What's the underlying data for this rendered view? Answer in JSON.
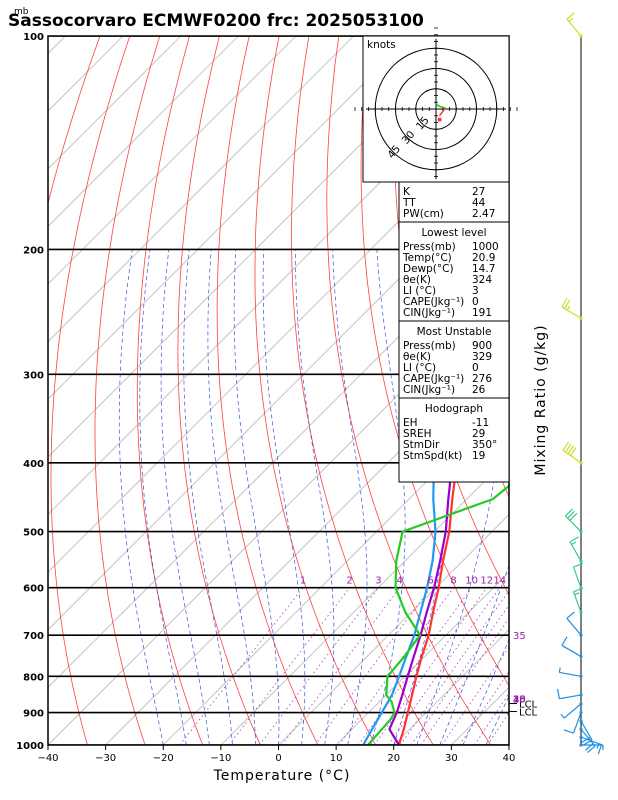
{
  "title": "Sassocorvaro ECMWF0200 frc: 2025053100",
  "pressure_unit": "mb",
  "xlabel": "Temperature (°C)",
  "right_label": "Mixing Ratio (g/kg)",
  "hodograph": {
    "unit": "knots",
    "ring_labels": [
      "15",
      "30",
      "45"
    ]
  },
  "lcl_label": "LCL",
  "mixing_ratio_labels": [
    "1",
    "2",
    "3",
    "4",
    "6",
    "8",
    "10",
    "12",
    "14",
    "16",
    "18",
    "20",
    "25",
    "30",
    "35",
    "40"
  ],
  "table": {
    "top": [
      {
        "label": "K",
        "value": "27"
      },
      {
        "label": "TT",
        "value": "44"
      },
      {
        "label": "PW(cm)",
        "value": "2.47"
      }
    ],
    "lowest_level": {
      "heading": "Lowest level",
      "rows": [
        {
          "label": "Press(mb)",
          "value": "1000"
        },
        {
          "label": "Temp(°C)",
          "value": "20.9"
        },
        {
          "label": "Dewp(°C)",
          "value": "14.7"
        },
        {
          "label": "θe(K)",
          "value": "324"
        },
        {
          "label": "LI (°C)",
          "value": "3"
        },
        {
          "label": "CAPE(Jkg⁻¹)",
          "value": "0"
        },
        {
          "label": "CIN(Jkg⁻¹)",
          "value": "191"
        }
      ]
    },
    "most_unstable": {
      "heading": "Most Unstable",
      "rows": [
        {
          "label": "Press(mb)",
          "value": "900"
        },
        {
          "label": "θe(K)",
          "value": "329"
        },
        {
          "label": "LI (°C)",
          "value": "0"
        },
        {
          "label": "CAPE(Jkg⁻¹)",
          "value": "276"
        },
        {
          "label": "CIN(Jkg⁻¹)",
          "value": "26"
        }
      ]
    },
    "hodograph": {
      "heading": "Hodograph",
      "rows": [
        {
          "label": "EH",
          "value": "-11"
        },
        {
          "label": "SREH",
          "value": "29"
        },
        {
          "label": "StmDir",
          "value": "350°"
        },
        {
          "label": "StmSpd(kt)",
          "value": "19"
        }
      ]
    }
  },
  "chart_data": {
    "type": "line",
    "title": "Sassocorvaro ECMWF0200 frc: 2025053100",
    "xlabel": "Temperature (°C)",
    "ylabel": "mb",
    "xlim": [
      -40,
      40
    ],
    "ylim": [
      1000,
      100
    ],
    "y_scale": "log",
    "x_ticks": [
      -40,
      -30,
      -20,
      -10,
      0,
      10,
      20,
      30,
      40
    ],
    "y_ticks": [
      1000,
      900,
      800,
      700,
      600,
      500,
      400,
      300,
      200,
      100
    ],
    "series": [
      {
        "role": "temperature",
        "color": "#ff3333",
        "points": [
          [
            1000,
            20.9
          ],
          [
            950,
            19.0
          ],
          [
            900,
            16.8
          ],
          [
            850,
            14.5
          ],
          [
            800,
            12.0
          ],
          [
            750,
            9.5
          ],
          [
            700,
            7.0
          ],
          [
            650,
            3.8
          ],
          [
            600,
            0.5
          ],
          [
            550,
            -3.4
          ],
          [
            500,
            -7.4
          ],
          [
            450,
            -12.5
          ],
          [
            400,
            -18.0
          ],
          [
            350,
            -24.5
          ],
          [
            300,
            -32.0
          ],
          [
            250,
            -41.0
          ],
          [
            200,
            -50.0
          ],
          [
            150,
            -58.0
          ],
          [
            100,
            -66.0
          ]
        ]
      },
      {
        "role": "dewpoint",
        "color": "#2299ee",
        "points": [
          [
            1000,
            14.7
          ],
          [
            950,
            13.5
          ],
          [
            900,
            12.3
          ],
          [
            850,
            11.0
          ],
          [
            800,
            9.0
          ],
          [
            750,
            6.8
          ],
          [
            700,
            4.5
          ],
          [
            650,
            1.6
          ],
          [
            600,
            -1.5
          ],
          [
            550,
            -5.2
          ],
          [
            500,
            -9.8
          ],
          [
            450,
            -15.8
          ],
          [
            400,
            -22.0
          ],
          [
            350,
            -28.5
          ],
          [
            300,
            -36.0
          ],
          [
            250,
            -44.0
          ],
          [
            200,
            -53.0
          ],
          [
            150,
            -62.0
          ],
          [
            100,
            -72.0
          ]
        ]
      },
      {
        "role": "parcel",
        "color": "#9900cc",
        "points": [
          [
            1000,
            20.9
          ],
          [
            950,
            16.5
          ],
          [
            900,
            14.9
          ],
          [
            850,
            12.8
          ],
          [
            800,
            10.5
          ],
          [
            750,
            8.1
          ],
          [
            700,
            5.6
          ],
          [
            650,
            2.7
          ],
          [
            600,
            -0.3
          ],
          [
            550,
            -3.9
          ],
          [
            500,
            -8.0
          ],
          [
            450,
            -13.2
          ],
          [
            400,
            -18.8
          ],
          [
            350,
            -25.3
          ],
          [
            300,
            -32.8
          ],
          [
            250,
            -41.5
          ],
          [
            200,
            -51.5
          ],
          [
            150,
            -62.0
          ],
          [
            100,
            -74.0
          ]
        ]
      },
      {
        "role": "wet-bulb potential",
        "color": "#22cc22",
        "points": [
          [
            1000,
            15.5
          ],
          [
            950,
            15.2
          ],
          [
            920,
            15.0
          ],
          [
            900,
            14.5
          ],
          [
            870,
            12.2
          ],
          [
            850,
            10.0
          ],
          [
            800,
            7.0
          ],
          [
            750,
            6.5
          ],
          [
            700,
            5.5
          ],
          [
            650,
            -1.0
          ],
          [
            600,
            -7.0
          ],
          [
            550,
            -11.5
          ],
          [
            500,
            -15.5
          ],
          [
            450,
            -5.5
          ],
          [
            400,
            -4.0
          ],
          [
            350,
            -9.0
          ],
          [
            300,
            -19.0
          ],
          [
            250,
            -34.0
          ],
          [
            200,
            -40.5
          ],
          [
            150,
            -48.0
          ],
          [
            100,
            -55.0
          ]
        ]
      }
    ],
    "mixing_ratio_lines": [
      1,
      2,
      3,
      4,
      6,
      8,
      10,
      12,
      14,
      16,
      18,
      20,
      25,
      30,
      35,
      40
    ],
    "lcl_pressures": [
      874,
      897
    ],
    "hodograph_trace": [
      [
        0,
        3
      ],
      [
        2,
        6
      ],
      [
        6,
        8
      ],
      [
        8,
        9
      ],
      [
        7,
        10
      ],
      [
        5,
        14
      ],
      [
        3,
        18
      ]
    ],
    "storm_motion": {
      "direction_deg": 350,
      "speed_kt": 19
    },
    "wind_barbs": [
      {
        "p": 1000,
        "dir": 90,
        "spd": 5
      },
      {
        "p": 975,
        "dir": 110,
        "spd": 15
      },
      {
        "p": 950,
        "dir": 140,
        "spd": 20
      },
      {
        "p": 925,
        "dir": 150,
        "spd": 20
      },
      {
        "p": 900,
        "dir": 200,
        "spd": 10
      },
      {
        "p": 875,
        "dir": 230,
        "spd": 5
      },
      {
        "p": 850,
        "dir": 260,
        "spd": 10
      },
      {
        "p": 800,
        "dir": 280,
        "spd": 5
      },
      {
        "p": 750,
        "dir": 300,
        "spd": 10
      },
      {
        "p": 700,
        "dir": 320,
        "spd": 10
      },
      {
        "p": 650,
        "dir": 340,
        "spd": 15
      },
      {
        "p": 600,
        "dir": 340,
        "spd": 10
      },
      {
        "p": 550,
        "dir": 330,
        "spd": 15
      },
      {
        "p": 500,
        "dir": 315,
        "spd": 30
      },
      {
        "p": 400,
        "dir": 305,
        "spd": 40
      },
      {
        "p": 250,
        "dir": 300,
        "spd": 25
      },
      {
        "p": 100,
        "dir": 320,
        "spd": 15
      }
    ]
  }
}
